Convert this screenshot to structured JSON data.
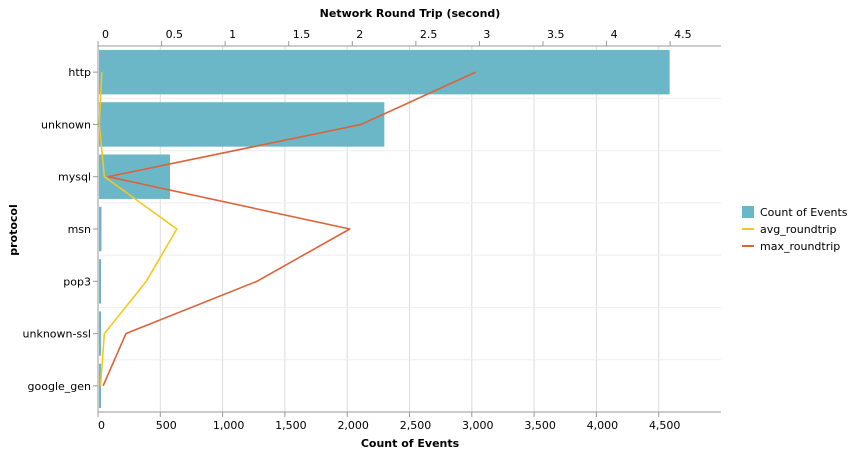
{
  "chart_data": {
    "type": "bar",
    "orientation": "horizontal",
    "title": "",
    "x_top_label": "Network Round Trip (second)",
    "x_bottom_label": "Count of Events",
    "y_label": "protocol",
    "categories": [
      "http",
      "unknown",
      "mysql",
      "msn",
      "pop3",
      "unknown-ssl",
      "google_gen"
    ],
    "bottom_axis": {
      "range": [
        0,
        5000
      ],
      "ticks": [
        0,
        500,
        1000,
        1500,
        2000,
        2500,
        3000,
        3500,
        4000,
        4500
      ],
      "tick_labels": [
        "0",
        "500",
        "1,000",
        "1,500",
        "2,000",
        "2,500",
        "3,000",
        "3,500",
        "4,000",
        "4,500"
      ]
    },
    "top_axis": {
      "range": [
        0,
        4.9
      ],
      "ticks": [
        0,
        0.5,
        1,
        1.5,
        2,
        2.5,
        3,
        3.5,
        4,
        4.5
      ],
      "tick_labels": [
        "0",
        "0.5",
        "1",
        "1.5",
        "2",
        "2.5",
        "3",
        "3.5",
        "4",
        "4.5"
      ]
    },
    "series": [
      {
        "name": "Count of Events",
        "kind": "bar",
        "axis": "bottom",
        "color": "#6bb7c7",
        "values": [
          4580,
          2290,
          570,
          20,
          15,
          5,
          5
        ]
      },
      {
        "name": "avg_roundtrip",
        "kind": "line",
        "axis": "top",
        "color": "#f4c81b",
        "values": [
          0.03,
          0.01,
          0.05,
          0.62,
          0.38,
          0.05,
          0.02
        ]
      },
      {
        "name": "max_roundtrip",
        "kind": "line",
        "axis": "top",
        "color": "#dc6339",
        "values": [
          2.97,
          2.07,
          0.08,
          1.98,
          1.25,
          0.22,
          0.04
        ]
      }
    ],
    "legend": {
      "position": "right"
    },
    "grid": true
  }
}
